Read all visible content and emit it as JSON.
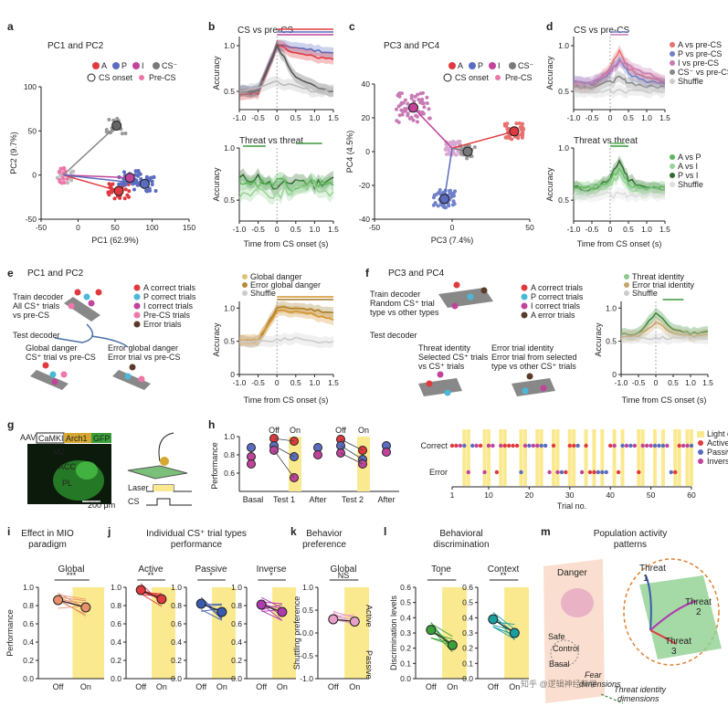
{
  "panels": {
    "a": {
      "letter": "a",
      "title": "PC1 and PC2",
      "xlabel": "PC1 (62.9%)",
      "ylabel": "PC2 (9.7%)",
      "legend": [
        "A",
        "P",
        "I",
        "CS⁻"
      ],
      "legend2": [
        "CS onset",
        "Pre-CS"
      ],
      "xticks": [
        "-50",
        "0",
        "50",
        "100",
        "150"
      ],
      "yticks": [
        "100",
        "50",
        "0",
        "-50"
      ]
    },
    "b": {
      "letter": "b",
      "top_title": "CS vs pre-CS",
      "bottom_title": "Threat vs threat",
      "ylabel": "Accuracy",
      "xlabel": "Time from CS onset (s)",
      "xticks": [
        "-1.0",
        "-0.5",
        "0",
        "0.5",
        "1.0",
        "1.5"
      ],
      "yticks": [
        "1.0",
        "0.5"
      ]
    },
    "c": {
      "letter": "c",
      "title": "PC3 and PC4",
      "xlabel": "PC3 (7.4%)",
      "ylabel": "PC4 (4.5%)",
      "xticks": [
        "-50",
        "0",
        "50"
      ],
      "yticks": [
        "40",
        "20",
        "0",
        "-20",
        "-40"
      ],
      "legend": [
        "A",
        "P",
        "I",
        "CS⁻"
      ],
      "legend2": [
        "CS onset",
        "Pre-CS"
      ]
    },
    "d": {
      "letter": "d",
      "top_title": "CS vs pre-CS",
      "bottom_title": "Threat vs threat",
      "ylabel": "Accuracy",
      "xlabel": "Time from CS onset (s)",
      "legend_top": [
        "A vs pre-CS",
        "P vs pre-CS",
        "I vs pre-CS",
        "CS⁻ vs pre-CS",
        "Shuffle"
      ],
      "legend_bottom": [
        "A vs P",
        "A vs I",
        "P vs I",
        "Shuffle"
      ]
    },
    "e": {
      "letter": "e",
      "title": "PC1 and PC2",
      "train": "Train decoder",
      "train2": "All CS⁺ trials",
      "train3": "vs pre-CS",
      "test": "Test decoder",
      "g1": "Global danger",
      "g2": "CS⁺ trial vs pre-CS",
      "e1": "Error global danger",
      "e2": "Error trial vs pre-CS",
      "legend": [
        "A correct trials",
        "P correct trials",
        "I correct trials",
        "Pre-CS trials",
        "Error trials"
      ],
      "plot_legend": [
        "Global danger",
        "Error global danger",
        "Shuffle"
      ],
      "ylabel": "Accuracy",
      "xlabel": "Time from CS onset (s)"
    },
    "f": {
      "letter": "f",
      "title": "PC3 and PC4",
      "train": "Train decoder",
      "train2": "Random CS⁺ trial",
      "train3": "type vs other types",
      "test": "Test decoder",
      "g1": "Threat identity",
      "g2": "Selected CS⁺ trials",
      "g3": "vs CS⁺ trials",
      "e1": "Error trial identity",
      "e2": "Error trial from selected",
      "e3": "type vs other CS⁺ trials",
      "legend": [
        "A correct trials",
        "P correct trials",
        "I correct trials",
        "A error trials"
      ],
      "plot_legend": [
        "Threat identity",
        "Error trial identity",
        "Shuffle"
      ],
      "ylabel": "Accuracy",
      "xlabel": "Time from CS onset (s)"
    },
    "g": {
      "letter": "g",
      "aav": "AAV",
      "camk": "CaMKII",
      "arch": "Arch1",
      "gfp": "GFP",
      "m2": "M2",
      "acc": "ACC",
      "pl": "PL",
      "scale": "200 μm",
      "laser": "Laser",
      "cs": "CS"
    },
    "h": {
      "letter": "h",
      "ylabel": "Performance",
      "groups": [
        "Basal",
        "Test 1",
        "After",
        "Test 2",
        "After"
      ],
      "onoff": [
        "Off",
        "On",
        "Off",
        "On"
      ],
      "raster_rows": [
        "Correct",
        "Error"
      ],
      "raster_xlabel": "Trial no.",
      "raster_xticks": [
        "1",
        "10",
        "20",
        "30",
        "40",
        "50",
        "60"
      ],
      "raster_legend": [
        "Light on",
        "Active",
        "Passive",
        "Inverse"
      ]
    },
    "i": {
      "letter": "i",
      "title": "Effect in MIO",
      "title2": "paradigm",
      "sub": "Global",
      "sig": "***",
      "ylabel": "Performance",
      "xt": [
        "Off",
        "On"
      ]
    },
    "j": {
      "letter": "j",
      "title": "Individual CS⁺ trial types",
      "title2": "performance",
      "subs": [
        "Active",
        "Passive",
        "Inverse"
      ],
      "sigs": [
        "**",
        "*",
        "*"
      ],
      "xt": [
        "Off",
        "On"
      ]
    },
    "k": {
      "letter": "k",
      "title": "Behavior",
      "title2": "preference",
      "sub": "Global",
      "sig": "NS",
      "ylabel": "Shuttling preference",
      "active": "Active",
      "passive": "Passive",
      "xt": [
        "Off",
        "On"
      ]
    },
    "l": {
      "letter": "l",
      "title": "Behavioral",
      "title2": "discrimination",
      "subs": [
        "Tone",
        "Context"
      ],
      "sigs": [
        "*",
        "**"
      ],
      "ylabel": "Discrimination levels",
      "xt": [
        "Off",
        "On"
      ]
    },
    "m": {
      "letter": "m",
      "title": "Population activity",
      "title2": "patterns",
      "danger": "Danger",
      "safe": "Safe",
      "control": "Control",
      "basal": "Basal",
      "fear": "Fear",
      "fear2": "dimensions",
      "threat1": "Threat",
      "threat1b": "1",
      "threat2": "Threat",
      "threat2b": "2",
      "threat3": "Threat",
      "threat3b": "3",
      "tid": "Threat identity",
      "tid2": "dimensions"
    },
    "watermark": "知乎 @逻辑神经科学"
  },
  "colors": {
    "A": "#e0393e",
    "P": "#5b6cc0",
    "I": "#c0449b",
    "CSm": "#7a7a7a",
    "green": "#3a9a3a",
    "orange": "#d4932a",
    "yellow": "#fbe98f",
    "teal": "#1a9ea0"
  },
  "chart_data": [
    {
      "type": "line",
      "panel": "b-top",
      "title": "CS vs pre-CS",
      "x": [
        -1.0,
        -0.5,
        0,
        0.5,
        1.0,
        1.5
      ],
      "series": [
        {
          "values": [
            0.5,
            0.52,
            1.0,
            0.98,
            0.95,
            0.92
          ]
        },
        {
          "values": [
            0.5,
            0.5,
            1.0,
            0.65,
            0.55,
            0.5
          ]
        }
      ],
      "ylim": [
        0.3,
        1.1
      ]
    },
    {
      "type": "line",
      "panel": "b-bottom",
      "title": "Threat vs threat",
      "x": [
        -1.0,
        -0.5,
        0,
        0.5,
        1.0,
        1.5
      ],
      "series": [
        {
          "values": [
            0.65,
            0.7,
            0.58,
            0.68,
            0.62,
            0.7
          ]
        },
        {
          "values": [
            0.6,
            0.66,
            0.62,
            0.58,
            0.65,
            0.62
          ]
        }
      ],
      "ylim": [
        0.3,
        1.0
      ]
    },
    {
      "type": "line",
      "panel": "e-plot",
      "x": [
        -1.0,
        -0.5,
        0,
        0.5,
        1.0,
        1.5
      ],
      "series": [
        {
          "name": "Global danger",
          "values": [
            0.5,
            0.5,
            1.0,
            1.0,
            0.97,
            0.93
          ]
        },
        {
          "name": "Error global danger",
          "values": [
            0.5,
            0.52,
            0.95,
            0.95,
            0.9,
            0.82
          ]
        },
        {
          "name": "Shuffle",
          "values": [
            0.5,
            0.5,
            0.52,
            0.55,
            0.48,
            0.5
          ]
        }
      ],
      "ylim": [
        0,
        1.1
      ]
    },
    {
      "type": "line",
      "panel": "f-plot",
      "x": [
        -1.0,
        -0.5,
        0,
        0.5,
        1.0,
        1.5
      ],
      "series": [
        {
          "name": "Threat identity",
          "values": [
            0.6,
            0.62,
            0.92,
            0.68,
            0.62,
            0.65
          ]
        },
        {
          "name": "Error trial identity",
          "values": [
            0.55,
            0.58,
            0.78,
            0.62,
            0.58,
            0.6
          ]
        },
        {
          "name": "Shuffle",
          "values": [
            0.55,
            0.55,
            0.55,
            0.55,
            0.55,
            0.55
          ]
        }
      ],
      "ylim": [
        0,
        1.1
      ]
    },
    {
      "type": "bar",
      "panel": "i",
      "title": "Global",
      "categories": [
        "Off",
        "On"
      ],
      "values": [
        0.86,
        0.78
      ],
      "ylim": [
        0,
        1.0
      ]
    },
    {
      "type": "bar",
      "panel": "j",
      "categories": [
        "Off",
        "On"
      ],
      "series": [
        {
          "name": "Active",
          "values": [
            0.97,
            0.87
          ]
        },
        {
          "name": "Passive",
          "values": [
            0.82,
            0.73
          ]
        },
        {
          "name": "Inverse",
          "values": [
            0.81,
            0.73
          ]
        }
      ],
      "ylim": [
        0,
        1.0
      ]
    },
    {
      "type": "bar",
      "panel": "k",
      "title": "Global",
      "categories": [
        "Off",
        "On"
      ],
      "values": [
        0.3,
        0.25
      ],
      "ylim": [
        -1.0,
        1.0
      ]
    },
    {
      "type": "bar",
      "panel": "l",
      "categories": [
        "Off",
        "On"
      ],
      "series": [
        {
          "name": "Tone",
          "values": [
            0.32,
            0.22
          ]
        },
        {
          "name": "Context",
          "values": [
            0.39,
            0.3
          ]
        }
      ],
      "ylim": [
        0,
        0.6
      ]
    }
  ]
}
